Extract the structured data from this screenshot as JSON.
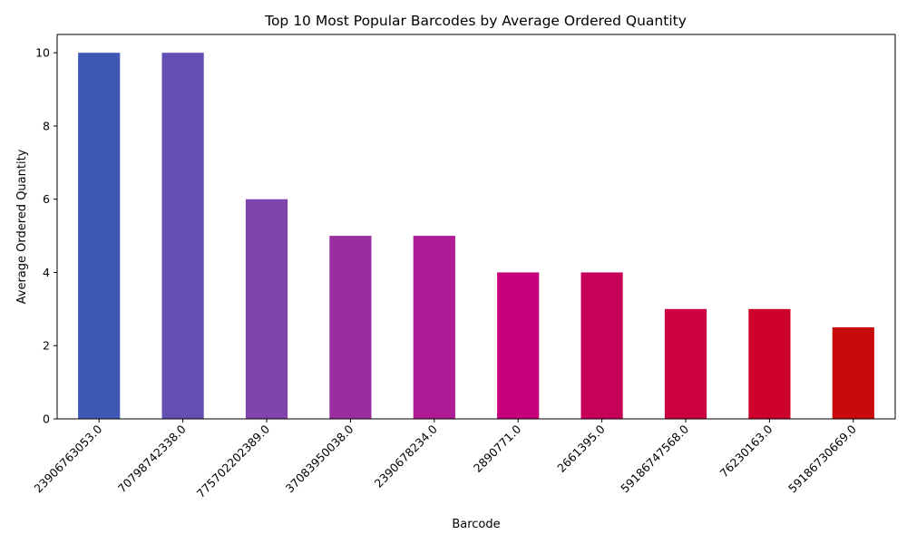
{
  "chart_data": {
    "type": "bar",
    "title": "Top 10 Most Popular Barcodes by Average Ordered Quantity",
    "xlabel": "Barcode",
    "ylabel": "Average Ordered Quantity",
    "categories": [
      "23906763053.0",
      "70798742338.0",
      "775702202389.0",
      "37083950038.0",
      "2390678234.0",
      "2890771.0",
      "2661395.0",
      "59186747568.0",
      "76230163.0",
      "59186730669.0"
    ],
    "values": [
      10,
      10,
      6,
      5,
      5,
      4,
      4,
      3,
      3,
      2.5
    ],
    "colors": [
      "#3f57b5",
      "#644fb3",
      "#7f44ad",
      "#9a2ea0",
      "#ae1b94",
      "#c6007a",
      "#c70059",
      "#cc0040",
      "#ce002c",
      "#c80a0a"
    ],
    "ylim": [
      0,
      10.5
    ],
    "yticks": [
      0,
      2,
      4,
      6,
      8,
      10
    ],
    "grid": false,
    "legend": "none"
  }
}
